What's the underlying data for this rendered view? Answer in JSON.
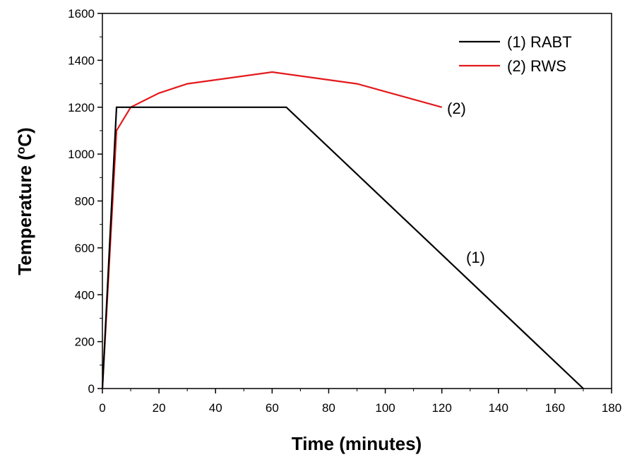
{
  "chart_data": {
    "type": "line",
    "xlabel": "Time (minutes)",
    "ylabel_main": "Temperature (",
    "ylabel_sup": "o",
    "ylabel_end": "C)",
    "xlim": [
      0,
      180
    ],
    "ylim": [
      0,
      1600
    ],
    "xticks": [
      0,
      20,
      40,
      60,
      80,
      100,
      120,
      140,
      160,
      180
    ],
    "yticks": [
      0,
      200,
      400,
      600,
      800,
      1000,
      1200,
      1400,
      1600
    ],
    "grid": false,
    "legend_position": "top-right",
    "series": [
      {
        "name": "(1) RABT",
        "color": "#000000",
        "annotation": "(1)",
        "x": [
          0,
          5,
          65,
          170
        ],
        "y": [
          0,
          1200,
          1200,
          0
        ]
      },
      {
        "name": "(2) RWS",
        "color": "#e31a1c",
        "annotation": "(2)",
        "x": [
          0,
          5,
          10,
          20,
          30,
          60,
          90,
          120
        ],
        "y": [
          0,
          1100,
          1200,
          1260,
          1300,
          1350,
          1300,
          1200
        ]
      }
    ]
  }
}
